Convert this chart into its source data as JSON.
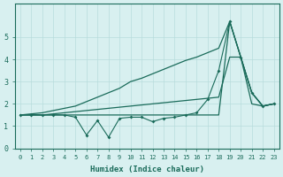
{
  "xlabel": "Humidex (Indice chaleur)",
  "x": [
    0,
    1,
    2,
    3,
    4,
    5,
    6,
    7,
    8,
    9,
    10,
    11,
    12,
    13,
    14,
    15,
    16,
    17,
    18,
    19,
    20,
    21,
    22,
    23
  ],
  "line_zigzag": [
    1.5,
    1.5,
    1.5,
    1.5,
    1.5,
    1.4,
    0.6,
    1.25,
    0.5,
    1.35,
    1.4,
    1.4,
    1.2,
    1.35,
    1.4,
    1.5,
    1.6,
    2.2,
    3.5,
    5.7,
    4.1,
    2.5,
    1.9,
    2.0
  ],
  "line_upper": [
    1.5,
    1.5,
    1.5,
    1.5,
    1.5,
    1.5,
    1.5,
    1.5,
    1.5,
    1.5,
    1.5,
    1.5,
    1.5,
    1.5,
    1.5,
    1.5,
    1.5,
    1.5,
    1.5,
    5.7,
    4.1,
    2.5,
    1.9,
    2.0
  ],
  "line_diag1": [
    1.5,
    1.55,
    1.6,
    1.7,
    1.8,
    1.9,
    2.1,
    2.3,
    2.5,
    2.7,
    3.0,
    3.15,
    3.35,
    3.55,
    3.75,
    3.95,
    4.1,
    4.3,
    4.5,
    5.7,
    4.1,
    2.5,
    1.9,
    2.0
  ],
  "line_diag2": [
    1.5,
    1.5,
    1.5,
    1.55,
    1.6,
    1.65,
    1.7,
    1.75,
    1.8,
    1.85,
    1.9,
    1.95,
    2.0,
    2.05,
    2.1,
    2.15,
    2.2,
    2.25,
    2.3,
    4.1,
    4.1,
    2.0,
    1.9,
    2.0
  ],
  "line_color": "#1a6b5a",
  "bg_color": "#d8f0f0",
  "grid_color": "#b8dcdc",
  "ylim": [
    0,
    6.5
  ],
  "xlim": [
    -0.5,
    23.5
  ]
}
